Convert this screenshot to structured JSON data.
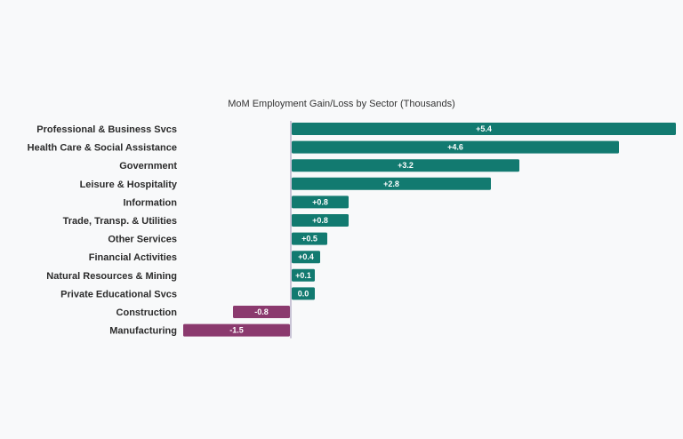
{
  "chart_data": {
    "type": "bar",
    "orientation": "horizontal",
    "title": "MoM Employment Gain/Loss by Sector (Thousands)",
    "xlabel": "",
    "ylabel": "",
    "grid": false,
    "categories": [
      "Professional & Business Svcs",
      "Health Care & Social Assistance",
      "Government",
      "Leisure & Hospitality",
      "Information",
      "Trade, Transp. & Utilities",
      "Other Services",
      "Financial Activities",
      "Natural Resources & Mining",
      "Private Educational Svcs",
      "Construction",
      "Manufacturing"
    ],
    "values": [
      5.4,
      4.6,
      3.2,
      2.8,
      0.8,
      0.8,
      0.5,
      0.4,
      0.1,
      0.0,
      -0.8,
      -1.5
    ],
    "data_labels": [
      "+5.4",
      "+4.6",
      "+3.2",
      "+2.8",
      "+0.8",
      "+0.8",
      "+0.5",
      "+0.4",
      "+0.1",
      "0.0",
      "-0.8",
      "-1.5"
    ],
    "colors": {
      "positive": "#127a70",
      "negative": "#8b3a6e",
      "zero_line": "#b9b2c9"
    }
  }
}
